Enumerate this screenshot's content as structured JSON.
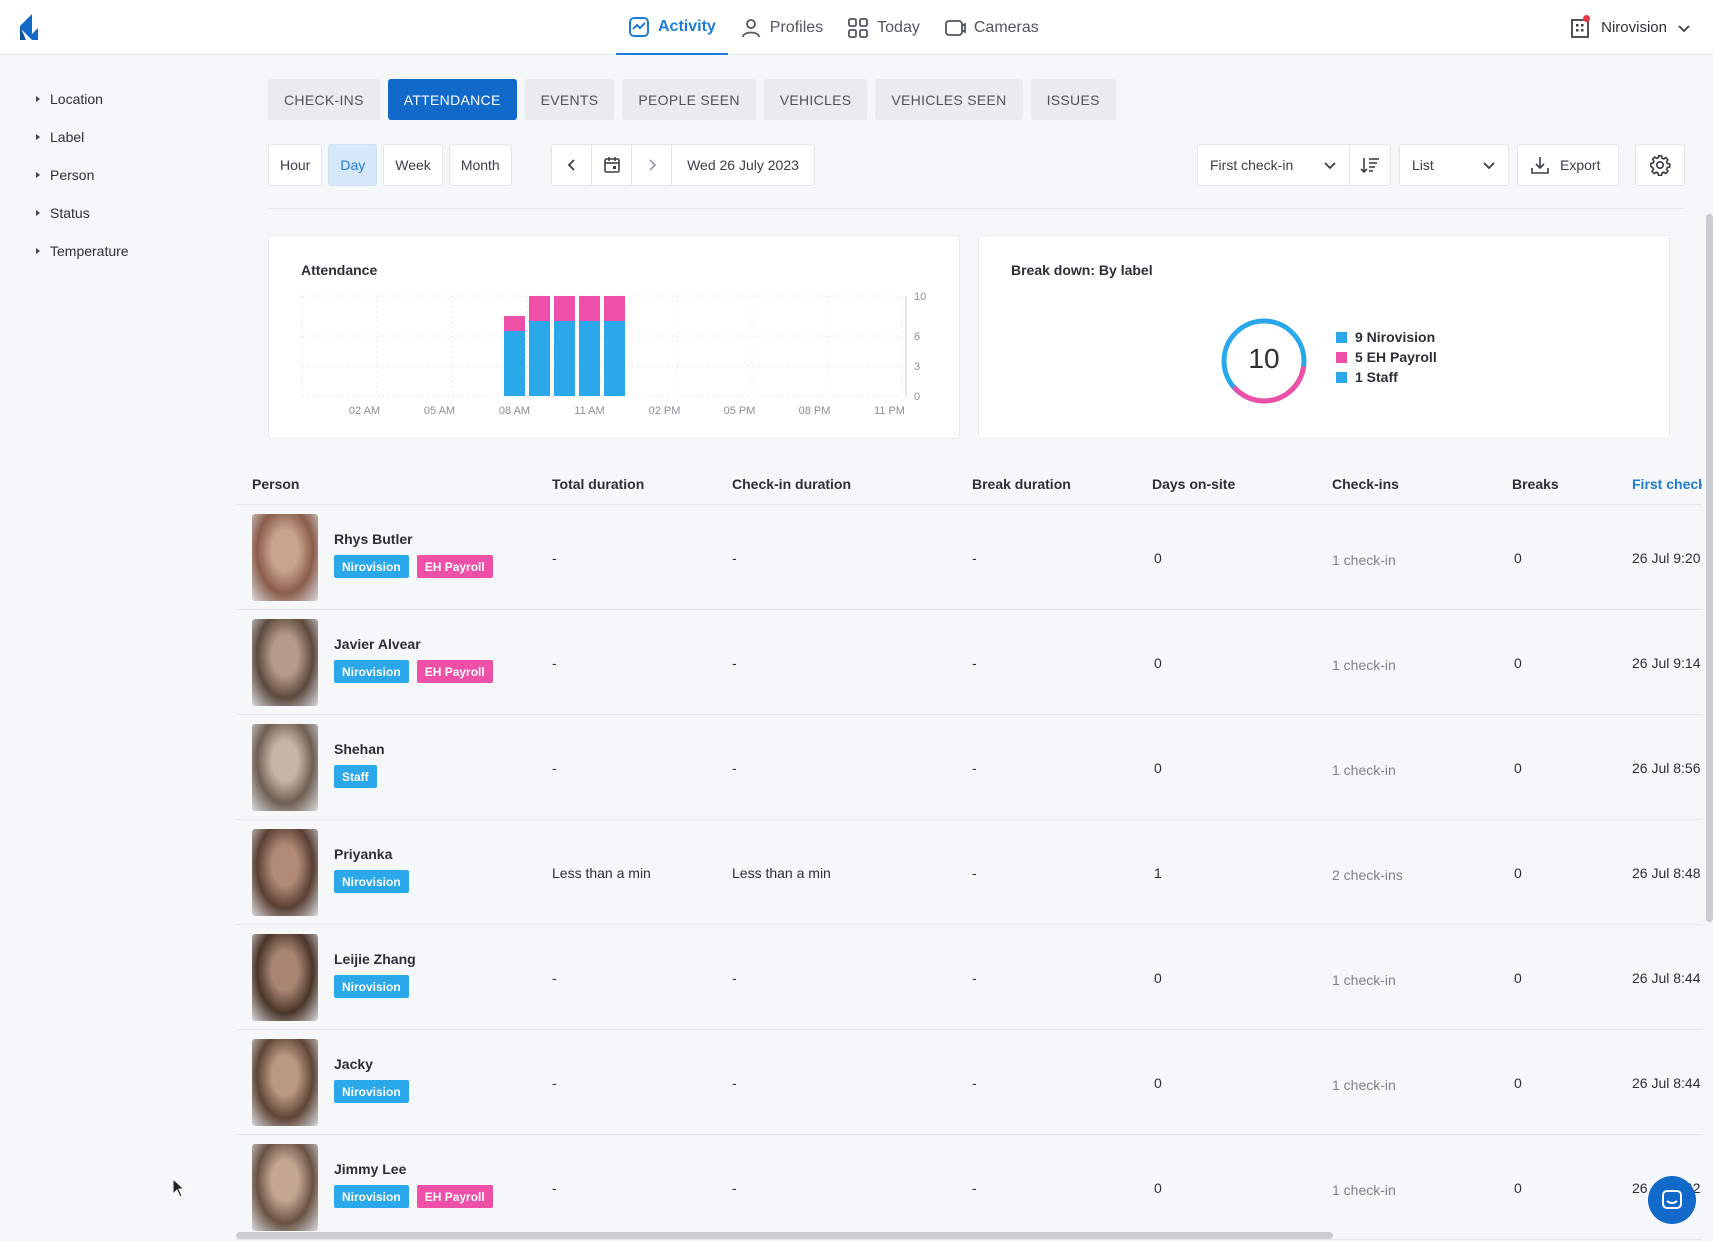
{
  "topnav": {
    "tabs": [
      {
        "label": "Activity",
        "icon": "activity-icon",
        "active": true
      },
      {
        "label": "Profiles",
        "icon": "person-icon",
        "active": false
      },
      {
        "label": "Today",
        "icon": "grid-icon",
        "active": false
      },
      {
        "label": "Cameras",
        "icon": "camera-icon",
        "active": false
      }
    ],
    "org": "Nirovision"
  },
  "sidebar": {
    "filters": [
      "Location",
      "Label",
      "Person",
      "Status",
      "Temperature"
    ]
  },
  "subtabs": [
    "CHECK-INS",
    "ATTENDANCE",
    "EVENTS",
    "PEOPLE SEEN",
    "VEHICLES",
    "VEHICLES SEEN",
    "ISSUES"
  ],
  "active_subtab": "ATTENDANCE",
  "toolbar": {
    "ranges": [
      "Hour",
      "Day",
      "Week",
      "Month"
    ],
    "active_range": "Day",
    "date": "Wed 26 July 2023",
    "sort_select": "First check-in",
    "view_select": "List",
    "export_label": "Export"
  },
  "attendance_card": {
    "title": "Attendance"
  },
  "breakdown_card": {
    "title": "Break down: By label",
    "total": "10",
    "legend": [
      {
        "label": "9 Nirovision",
        "color": "#2ba8ea"
      },
      {
        "label": "5 EH Payroll",
        "color": "#ee4fa7"
      },
      {
        "label": "1 Staff",
        "color": "#2ba8ea"
      }
    ]
  },
  "chart_data": {
    "type": "bar",
    "title": "Attendance",
    "categories": [
      "12 AM",
      "01 AM",
      "02 AM",
      "03 AM",
      "04 AM",
      "05 AM",
      "06 AM",
      "07 AM",
      "08 AM",
      "09 AM",
      "10 AM",
      "11 AM",
      "12 PM",
      "01 PM",
      "02 PM",
      "03 PM",
      "04 PM",
      "05 PM",
      "06 PM",
      "07 PM",
      "08 PM",
      "09 PM",
      "10 PM",
      "11 PM"
    ],
    "tick_labels": [
      "02 AM",
      "05 AM",
      "08 AM",
      "11 AM",
      "02 PM",
      "05 PM",
      "08 PM",
      "11 PM"
    ],
    "y_ticks": [
      "0",
      "3",
      "6",
      "10"
    ],
    "ylim": [
      0,
      10
    ],
    "series": [
      {
        "color": "#2ba8ea",
        "values": [
          0,
          0,
          0,
          0,
          0,
          0,
          0,
          0,
          6.5,
          7.5,
          7.5,
          7.5,
          7.5,
          0,
          0,
          0,
          0,
          0,
          0,
          0,
          0,
          0,
          0,
          0
        ]
      },
      {
        "color": "#ee4fa7",
        "values": [
          0,
          0,
          0,
          0,
          0,
          0,
          0,
          0,
          1.5,
          2.5,
          2.5,
          2.5,
          2.5,
          0,
          0,
          0,
          0,
          0,
          0,
          0,
          0,
          0,
          0,
          0
        ]
      }
    ],
    "stacked": true,
    "grid": true
  },
  "table": {
    "headers": {
      "person": "Person",
      "total": "Total duration",
      "checkin": "Check-in duration",
      "break": "Break duration",
      "days": "Days on-site",
      "checkins": "Check-ins",
      "breaks": "Breaks",
      "first": "First check"
    },
    "rows": [
      {
        "name": "Rhys Butler",
        "tags": [
          {
            "label": "Nirovision",
            "color": "blue"
          },
          {
            "label": "EH Payroll",
            "color": "pink"
          }
        ],
        "total": "-",
        "checkin": "-",
        "break": "-",
        "days": "0",
        "checkins": "1 check-in",
        "breaks": "0",
        "first": "26 Jul 9:20"
      },
      {
        "name": "Javier Alvear",
        "tags": [
          {
            "label": "Nirovision",
            "color": "blue"
          },
          {
            "label": "EH Payroll",
            "color": "pink"
          }
        ],
        "total": "-",
        "checkin": "-",
        "break": "-",
        "days": "0",
        "checkins": "1 check-in",
        "breaks": "0",
        "first": "26 Jul 9:14"
      },
      {
        "name": "Shehan",
        "tags": [
          {
            "label": "Staff",
            "color": "blue"
          }
        ],
        "total": "-",
        "checkin": "-",
        "break": "-",
        "days": "0",
        "checkins": "1 check-in",
        "breaks": "0",
        "first": "26 Jul 8:56"
      },
      {
        "name": "Priyanka",
        "tags": [
          {
            "label": "Nirovision",
            "color": "blue"
          }
        ],
        "total": "Less than a min",
        "checkin": "Less than a min",
        "break": "-",
        "days": "1",
        "checkins": "2 check-ins",
        "breaks": "0",
        "first": "26 Jul 8:48"
      },
      {
        "name": "Leijie Zhang",
        "tags": [
          {
            "label": "Nirovision",
            "color": "blue"
          }
        ],
        "total": "-",
        "checkin": "-",
        "break": "-",
        "days": "0",
        "checkins": "1 check-in",
        "breaks": "0",
        "first": "26 Jul 8:44"
      },
      {
        "name": "Jacky",
        "tags": [
          {
            "label": "Nirovision",
            "color": "blue"
          }
        ],
        "total": "-",
        "checkin": "-",
        "break": "-",
        "days": "0",
        "checkins": "1 check-in",
        "breaks": "0",
        "first": "26 Jul 8:44"
      },
      {
        "name": "Jimmy Lee",
        "tags": [
          {
            "label": "Nirovision",
            "color": "blue"
          },
          {
            "label": "EH Payroll",
            "color": "pink"
          }
        ],
        "total": "-",
        "checkin": "-",
        "break": "-",
        "days": "0",
        "checkins": "1 check-in",
        "breaks": "0",
        "first": "26 Jul 8:42"
      }
    ]
  }
}
